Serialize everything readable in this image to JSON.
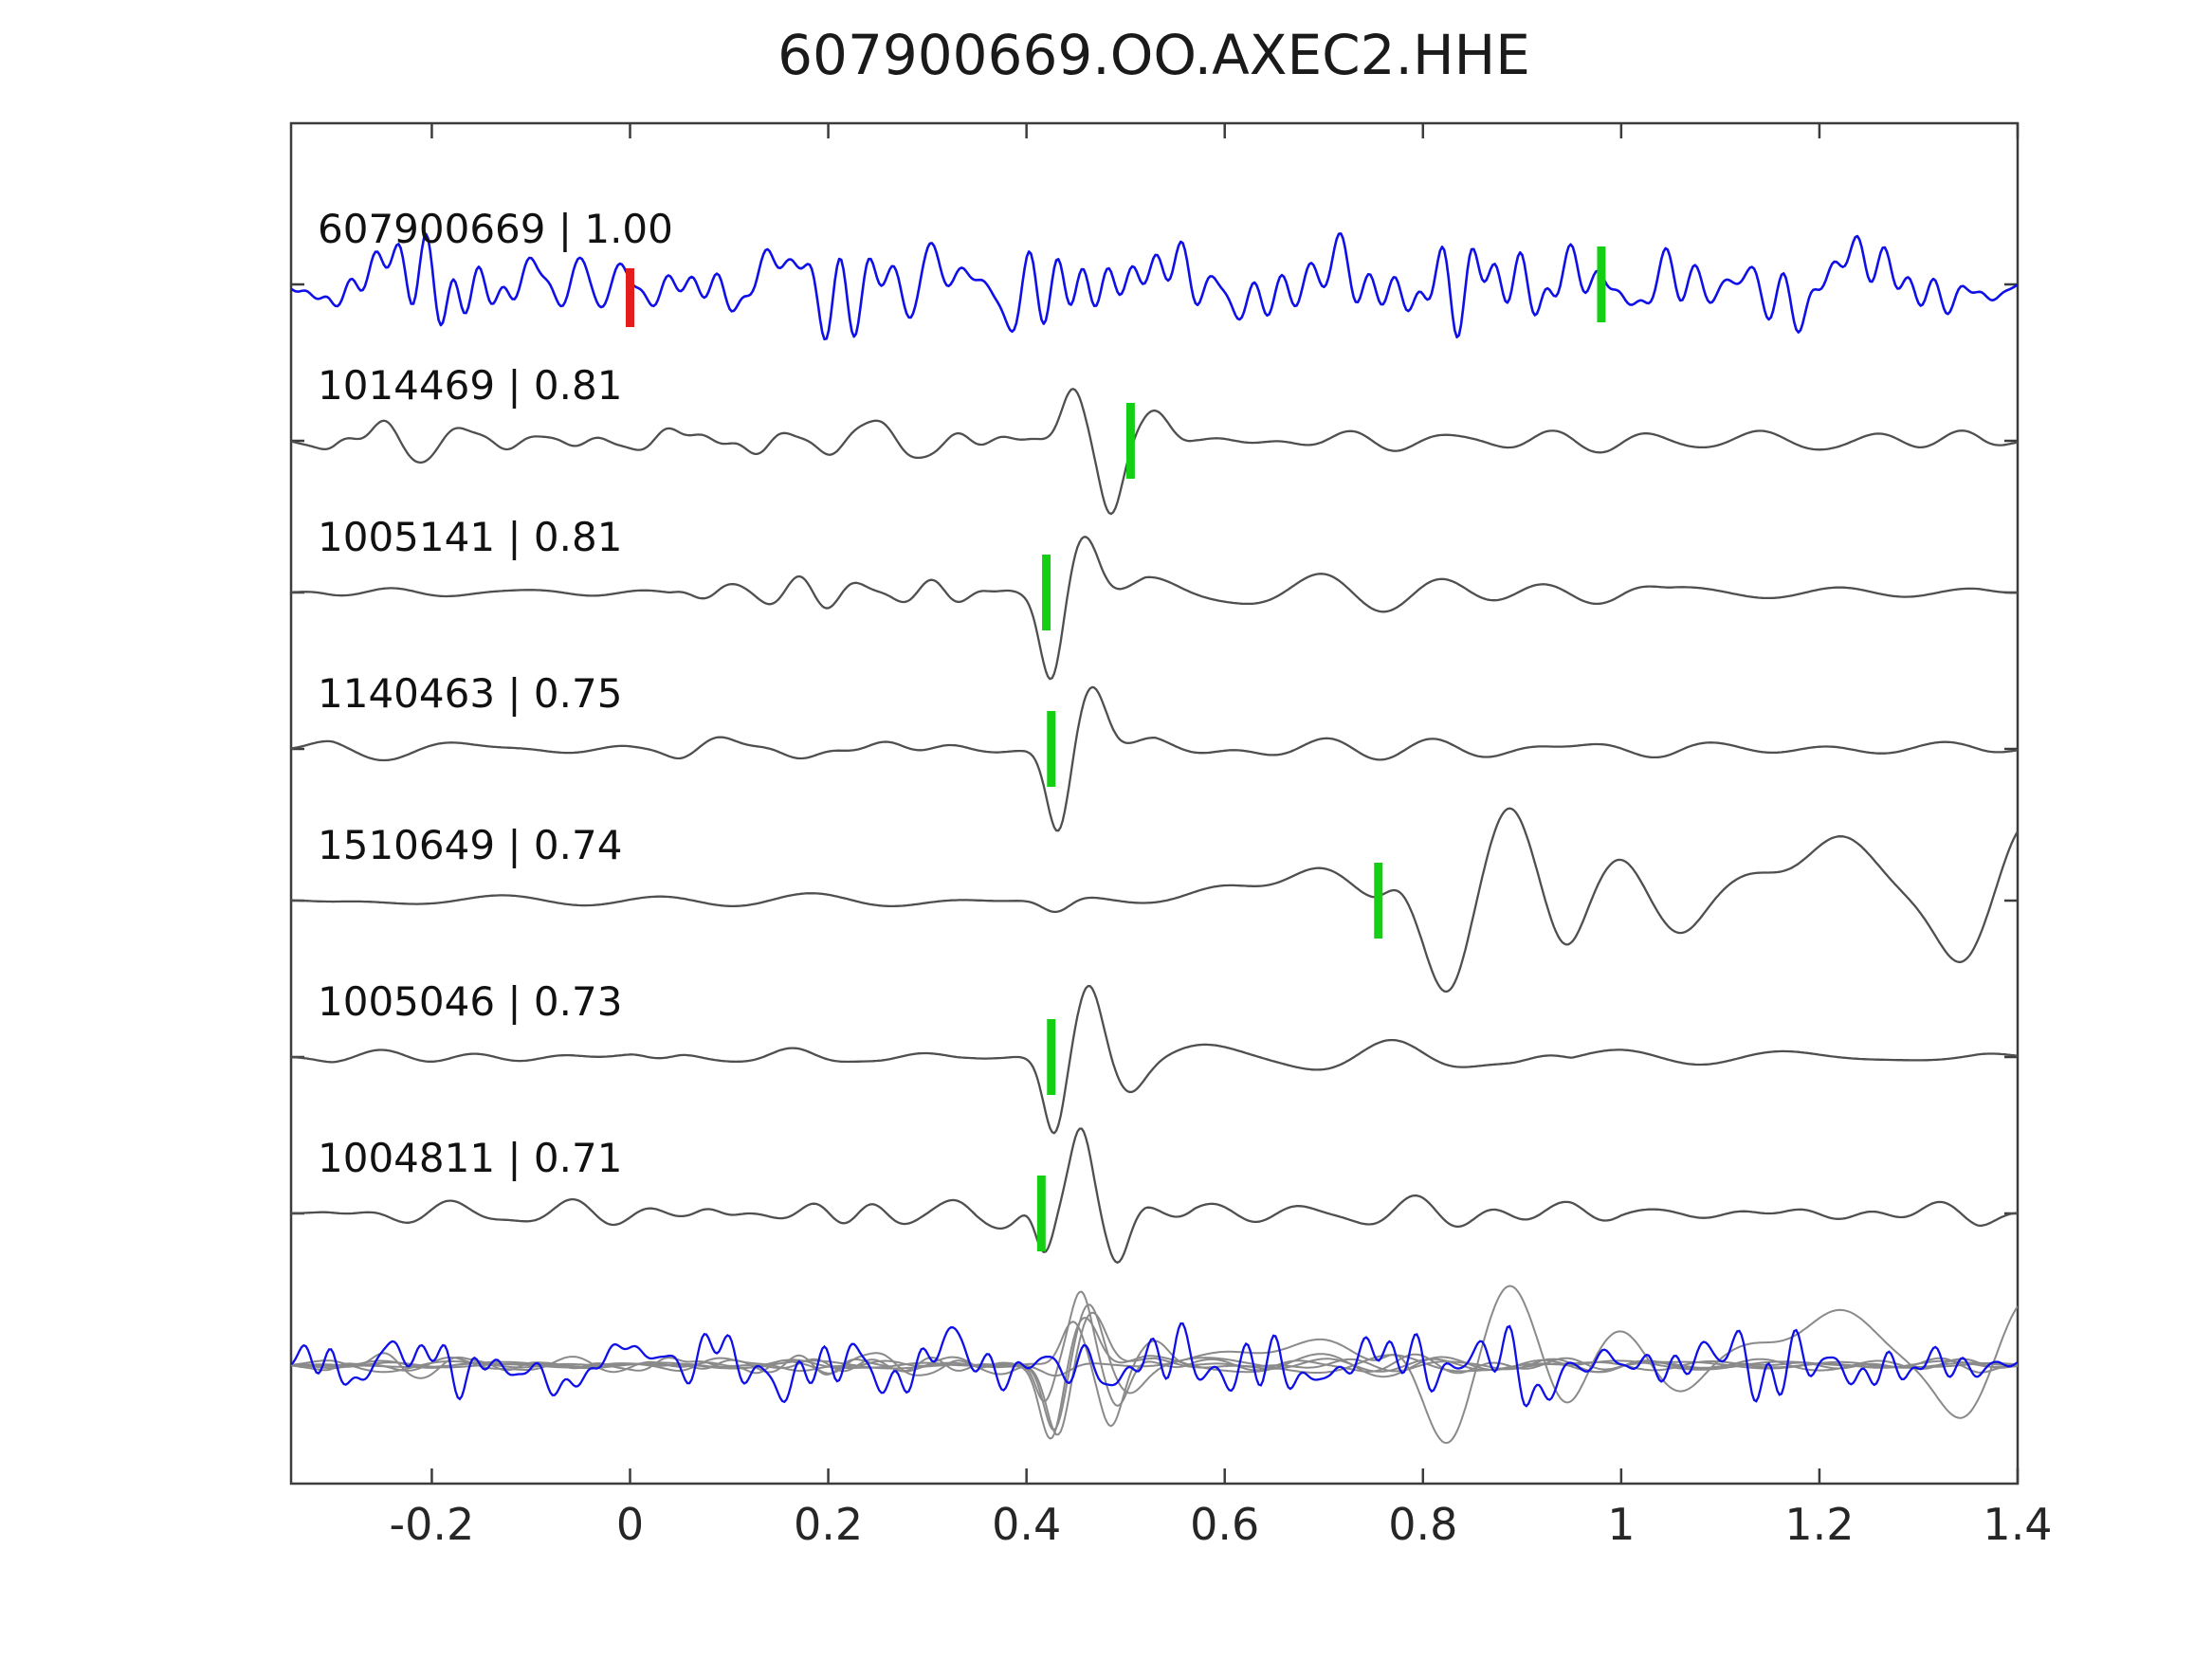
{
  "title": "607900669.OO.AXEC2.HHE",
  "chart_data": {
    "type": "line",
    "title": "607900669.OO.AXEC2.HHE",
    "xlabel": "",
    "ylabel": "",
    "xlim": [
      -0.342,
      1.4
    ],
    "grid": false,
    "legend": "none",
    "x_ticks": [
      {
        "value": -0.2,
        "label": "-0.2"
      },
      {
        "value": 0,
        "label": "0"
      },
      {
        "value": 0.2,
        "label": "0.2"
      },
      {
        "value": 0.4,
        "label": "0.4"
      },
      {
        "value": 0.6,
        "label": "0.6"
      },
      {
        "value": 0.8,
        "label": "0.8"
      },
      {
        "value": 1,
        "label": "1"
      },
      {
        "value": 1.2,
        "label": "1.2"
      },
      {
        "value": 1.4,
        "label": "1.4"
      }
    ],
    "target_trace": "607900669",
    "colors": {
      "target_blue": "#0f0fe8",
      "match_gray": "#4f4f4f",
      "overlay_gray": "#8a8a8a",
      "pick_green": "#15cf15",
      "pick_red": "#e51c1c",
      "axis": "#3c3c3c",
      "tick_label": "#262626",
      "trace_label": "#111111"
    },
    "traces": [
      {
        "id": "607900669",
        "correlation": "1.00",
        "label": "607900669 | 1.00",
        "color": "#0f0fe8",
        "row": 0,
        "picks": [
          {
            "time": 0.0,
            "color": "#e51c1c"
          },
          {
            "time": 0.98,
            "color": "#15cf15"
          }
        ],
        "synth": {
          "seed": 7,
          "bands": [
            {
              "fmin": 7,
              "fmax": 42,
              "amp": 55,
              "t0": -0.35,
              "t1": 1.41
            },
            {
              "fmin": 2.5,
              "fmax": 6,
              "amp": 20,
              "t0": -0.35,
              "t1": 1.41
            }
          ],
          "pulses": []
        }
      },
      {
        "id": "1014469",
        "correlation": "0.81",
        "label": "1014469 | 0.81",
        "color": "#4f4f4f",
        "row": 1,
        "picks": [
          {
            "time": 0.505,
            "color": "#15cf15"
          }
        ],
        "synth": {
          "seed": 23,
          "bands": [
            {
              "fmin": 4.5,
              "fmax": 15,
              "amp": 24,
              "t0": -0.35,
              "t1": 1.41
            },
            {
              "fmin": 16,
              "fmax": 28,
              "amp": 9,
              "t0": -0.35,
              "t1": 0.45
            },
            {
              "fmin": 5,
              "fmax": 13,
              "amp": 26,
              "t0": 0.52,
              "t1": 0.98
            }
          ],
          "pulses": [
            {
              "t": 0.447,
              "a": 52,
              "w": 0.016
            },
            {
              "t": 0.485,
              "a": -72,
              "w": 0.016
            },
            {
              "t": 0.53,
              "a": 26,
              "w": 0.02
            }
          ]
        }
      },
      {
        "id": "1005141",
        "correlation": "0.81",
        "label": "1005141 | 0.81",
        "color": "#4f4f4f",
        "row": 2,
        "picks": [
          {
            "time": 0.42,
            "color": "#15cf15"
          }
        ],
        "synth": {
          "seed": 37,
          "bands": [
            {
              "fmin": 5,
              "fmax": 12,
              "amp": 9,
              "t0": -0.35,
              "t1": 0.08
            },
            {
              "fmin": 13,
              "fmax": 24,
              "amp": 17,
              "t0": 0.04,
              "t1": 0.4
            },
            {
              "fmin": 5,
              "fmax": 11,
              "amp": 22,
              "t0": 0.47,
              "t1": 1.05
            },
            {
              "fmin": 4,
              "fmax": 9,
              "amp": 9,
              "t0": 1.0,
              "t1": 1.41
            }
          ],
          "pulses": [
            {
              "t": 0.425,
              "a": -95,
              "w": 0.016
            },
            {
              "t": 0.458,
              "a": 60,
              "w": 0.02
            }
          ]
        }
      },
      {
        "id": "1140463",
        "correlation": "0.75",
        "label": "1140463 | 0.75",
        "color": "#4f4f4f",
        "row": 3,
        "picks": [
          {
            "time": 0.425,
            "color": "#15cf15"
          }
        ],
        "synth": {
          "seed": 51,
          "bands": [
            {
              "fmin": 4,
              "fmax": 10,
              "amp": 12,
              "t0": -0.35,
              "t1": 0.42
            },
            {
              "fmin": 9,
              "fmax": 18,
              "amp": 9,
              "t0": 0.0,
              "t1": 0.42
            },
            {
              "fmin": 5,
              "fmax": 11,
              "amp": 26,
              "t0": 0.48,
              "t1": 1.1
            },
            {
              "fmin": 4,
              "fmax": 9,
              "amp": 10,
              "t0": 1.05,
              "t1": 1.41
            }
          ],
          "pulses": [
            {
              "t": 0.432,
              "a": -90,
              "w": 0.016
            },
            {
              "t": 0.466,
              "a": 66,
              "w": 0.02
            }
          ]
        }
      },
      {
        "id": "1510649",
        "correlation": "0.74",
        "label": "1510649 | 0.74",
        "color": "#4f4f4f",
        "row": 4,
        "picks": [
          {
            "time": 0.755,
            "color": "#15cf15"
          }
        ],
        "synth": {
          "seed": 67,
          "bands": [
            {
              "fmin": 3,
              "fmax": 8,
              "amp": 13,
              "t0": -0.35,
              "t1": 0.8
            },
            {
              "fmin": 4,
              "fmax": 9,
              "amp": 8,
              "t0": 0.8,
              "t1": 1.41
            }
          ],
          "pulses": [
            {
              "t": 0.43,
              "a": -16,
              "w": 0.02
            },
            {
              "t": 0.6,
              "a": 18,
              "w": 0.05
            },
            {
              "t": 0.7,
              "a": 26,
              "w": 0.045
            },
            {
              "t": 0.775,
              "a": 20,
              "w": 0.02
            },
            {
              "t": 0.825,
              "a": -100,
              "w": 0.03
            },
            {
              "t": 0.888,
              "a": 102,
              "w": 0.032
            },
            {
              "t": 0.945,
              "a": -52,
              "w": 0.025
            },
            {
              "t": 1.0,
              "a": 40,
              "w": 0.03
            },
            {
              "t": 1.06,
              "a": -30,
              "w": 0.03
            },
            {
              "t": 1.13,
              "a": 20,
              "w": 0.04
            },
            {
              "t": 1.22,
              "a": 70,
              "w": 0.05
            },
            {
              "t": 1.345,
              "a": -70,
              "w": 0.035
            },
            {
              "t": 1.41,
              "a": 85,
              "w": 0.035
            }
          ]
        }
      },
      {
        "id": "1005046",
        "correlation": "0.73",
        "label": "1005046 | 0.73",
        "color": "#4f4f4f",
        "row": 5,
        "picks": [
          {
            "time": 0.425,
            "color": "#15cf15"
          }
        ],
        "synth": {
          "seed": 83,
          "bands": [
            {
              "fmin": 5,
              "fmax": 12,
              "amp": 10,
              "t0": -0.35,
              "t1": 0.4
            },
            {
              "fmin": 9,
              "fmax": 17,
              "amp": 7,
              "t0": 0.0,
              "t1": 0.38
            },
            {
              "fmin": 5,
              "fmax": 11,
              "amp": 19,
              "t0": 0.48,
              "t1": 0.95
            },
            {
              "fmin": 4,
              "fmax": 8,
              "amp": 8,
              "t0": 0.9,
              "t1": 1.41
            }
          ],
          "pulses": [
            {
              "t": 0.428,
              "a": -82,
              "w": 0.015
            },
            {
              "t": 0.463,
              "a": 76,
              "w": 0.018
            },
            {
              "t": 0.503,
              "a": -30,
              "w": 0.02
            }
          ]
        }
      },
      {
        "id": "1004811",
        "correlation": "0.71",
        "label": "1004811 | 0.71",
        "color": "#4f4f4f",
        "row": 6,
        "picks": [
          {
            "time": 0.415,
            "color": "#15cf15"
          }
        ],
        "synth": {
          "seed": 97,
          "bands": [
            {
              "fmin": 6,
              "fmax": 16,
              "amp": 17,
              "t0": -0.35,
              "t1": 1.41
            },
            {
              "fmin": 11,
              "fmax": 24,
              "amp": 15,
              "t0": 0.06,
              "t1": 0.4
            },
            {
              "fmin": 6,
              "fmax": 13,
              "amp": 20,
              "t0": 0.52,
              "t1": 1.0
            }
          ],
          "pulses": [
            {
              "t": 0.418,
              "a": -55,
              "w": 0.013
            },
            {
              "t": 0.455,
              "a": 95,
              "w": 0.016
            },
            {
              "t": 0.492,
              "a": -48,
              "w": 0.015
            }
          ]
        }
      }
    ],
    "overlay": {
      "description": "all matched traces overlaid with target at bottom row",
      "blue_color": "#0f0fe8",
      "gray_color": "#8a8a8a",
      "gray_noise_scale": 0.6,
      "gray_pulse_scale": 0.85,
      "blue_synth": {
        "seed": 131,
        "bands": [
          {
            "fmin": 7,
            "fmax": 42,
            "amp": 46,
            "t0": -0.35,
            "t1": 1.41
          },
          {
            "fmin": 2.5,
            "fmax": 6,
            "amp": 15,
            "t0": -0.35,
            "t1": 1.41
          }
        ],
        "pulses": []
      }
    },
    "note": "waveform sample values are stochastic visual approximations (amplitudes in px relative to each trace baseline)"
  }
}
